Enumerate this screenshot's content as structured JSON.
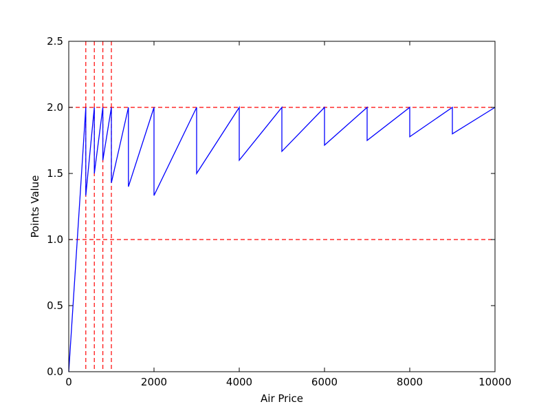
{
  "chart_data": {
    "type": "line",
    "title": "",
    "xlabel": "Air Price",
    "ylabel": "Points Value",
    "xlim": [
      0,
      10000
    ],
    "ylim": [
      0,
      2.5
    ],
    "xticks": [
      0,
      2000,
      4000,
      6000,
      8000,
      10000
    ],
    "xtick_labels": [
      "0",
      "2000",
      "4000",
      "6000",
      "8000",
      "10000"
    ],
    "yticks": [
      0.0,
      0.5,
      1.0,
      1.5,
      2.0,
      2.5
    ],
    "ytick_labels": [
      "0.0",
      "0.5",
      "1.0",
      "1.5",
      "2.0",
      "2.5"
    ],
    "grid": false,
    "series": [
      {
        "color": "#0000ff",
        "x": [
          0,
          400,
          400,
          600,
          600,
          800,
          800,
          1000,
          1000,
          1400,
          1400,
          2000,
          2000,
          3000,
          3000,
          4000,
          4000,
          5000,
          5000,
          6000,
          6000,
          7000,
          7000,
          8000,
          8000,
          9000,
          9000,
          10000
        ],
        "y": [
          0,
          2.0,
          1.333,
          2.0,
          1.5,
          2.0,
          1.6,
          2.0,
          1.429,
          2.0,
          1.4,
          2.0,
          1.333,
          2.0,
          1.5,
          2.0,
          1.6,
          2.0,
          1.667,
          2.0,
          1.714,
          2.0,
          1.75,
          2.0,
          1.778,
          2.0,
          1.8,
          2.0
        ]
      }
    ],
    "reference_lines": {
      "color": "#ff0000",
      "style": "dashed",
      "horizontal": [
        1.0,
        2.0
      ],
      "vertical": [
        400,
        600,
        800,
        1000
      ]
    }
  }
}
